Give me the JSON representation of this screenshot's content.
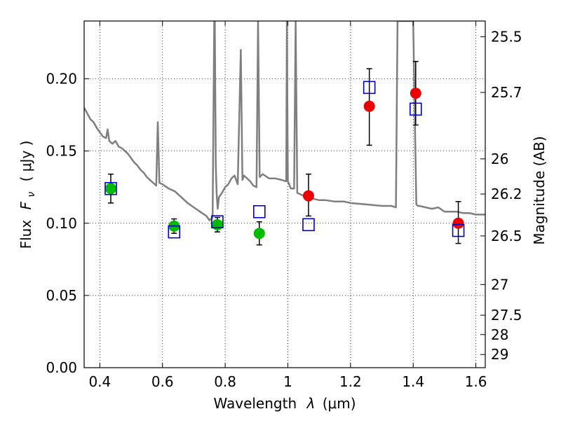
{
  "chart_data": {
    "type": "scatter",
    "xlabel": "Wavelength",
    "xlabel_symbol": "λ",
    "xlabel_unit": "(μm)",
    "ylabel": "Flux",
    "ylabel_symbol": "F",
    "ylabel_subscript": "ν",
    "ylabel_unit": "( μJy )",
    "y2label": "Magnitude (AB)",
    "xlim": [
      0.35,
      1.63
    ],
    "ylim": [
      0.0,
      0.24
    ],
    "grid": true,
    "x_ticks": [
      {
        "value": 0.4,
        "label": "0.4"
      },
      {
        "value": 0.6,
        "label": "0.6"
      },
      {
        "value": 0.8,
        "label": "0.8"
      },
      {
        "value": 1.0,
        "label": "1"
      },
      {
        "value": 1.2,
        "label": "1.2"
      },
      {
        "value": 1.4,
        "label": "1.4"
      },
      {
        "value": 1.6,
        "label": "1.6"
      }
    ],
    "y_ticks": [
      {
        "value": 0.0,
        "label": "0.00"
      },
      {
        "value": 0.05,
        "label": "0.05"
      },
      {
        "value": 0.1,
        "label": "0.10"
      },
      {
        "value": 0.15,
        "label": "0.15"
      },
      {
        "value": 0.2,
        "label": "0.20"
      }
    ],
    "y2_ticks": [
      {
        "mag": 25.5,
        "label": "25.5"
      },
      {
        "mag": 25.7,
        "label": "25.7"
      },
      {
        "mag": 26.0,
        "label": "26"
      },
      {
        "mag": 26.2,
        "label": "26.2"
      },
      {
        "mag": 26.5,
        "label": "26.5"
      },
      {
        "mag": 27.0,
        "label": "27"
      },
      {
        "mag": 27.5,
        "label": "27.5"
      },
      {
        "mag": 28.0,
        "label": "28"
      },
      {
        "mag": 29.0,
        "label": "29"
      }
    ],
    "model_spectrum": {
      "color": "#7f7f7f",
      "x": [
        0.35,
        0.36,
        0.37,
        0.38,
        0.39,
        0.4,
        0.41,
        0.42,
        0.425,
        0.43,
        0.44,
        0.45,
        0.46,
        0.47,
        0.48,
        0.49,
        0.5,
        0.51,
        0.52,
        0.53,
        0.54,
        0.55,
        0.56,
        0.57,
        0.58,
        0.585,
        0.59,
        0.6,
        0.62,
        0.64,
        0.66,
        0.68,
        0.7,
        0.72,
        0.74,
        0.75,
        0.76,
        0.765,
        0.767,
        0.77,
        0.773,
        0.776,
        0.78,
        0.79,
        0.8,
        0.81,
        0.82,
        0.83,
        0.84,
        0.85,
        0.855,
        0.86,
        0.87,
        0.88,
        0.89,
        0.9,
        0.905,
        0.91,
        0.92,
        0.94,
        0.96,
        0.98,
        0.995,
        0.997,
        1.0,
        1.01,
        1.02,
        1.025,
        1.03,
        1.04,
        1.06,
        1.08,
        1.1,
        1.12,
        1.15,
        1.18,
        1.2,
        1.25,
        1.3,
        1.33,
        1.345,
        1.35,
        1.36,
        1.38,
        1.4,
        1.41,
        1.415,
        1.42,
        1.44,
        1.46,
        1.48,
        1.5,
        1.52,
        1.54,
        1.56,
        1.58,
        1.6,
        1.63
      ],
      "y": [
        0.18,
        0.176,
        0.172,
        0.17,
        0.166,
        0.163,
        0.16,
        0.159,
        0.165,
        0.157,
        0.155,
        0.157,
        0.153,
        0.152,
        0.15,
        0.148,
        0.145,
        0.142,
        0.14,
        0.137,
        0.135,
        0.132,
        0.13,
        0.128,
        0.126,
        0.17,
        0.128,
        0.127,
        0.124,
        0.122,
        0.118,
        0.114,
        0.111,
        0.108,
        0.105,
        0.102,
        0.104,
        0.24,
        0.24,
        0.14,
        0.12,
        0.11,
        0.118,
        0.121,
        0.125,
        0.127,
        0.131,
        0.133,
        0.127,
        0.22,
        0.13,
        0.133,
        0.131,
        0.129,
        0.126,
        0.125,
        0.24,
        0.132,
        0.134,
        0.131,
        0.131,
        0.13,
        0.129,
        0.24,
        0.129,
        0.124,
        0.124,
        0.24,
        0.121,
        0.12,
        0.118,
        0.117,
        0.116,
        0.116,
        0.115,
        0.115,
        0.114,
        0.113,
        0.112,
        0.112,
        0.111,
        0.24,
        0.24,
        0.24,
        0.24,
        0.113,
        0.112,
        0.112,
        0.111,
        0.11,
        0.111,
        0.108,
        0.108,
        0.108,
        0.107,
        0.107,
        0.106,
        0.106
      ]
    },
    "series": [
      {
        "marker": "filled-circle",
        "color": "#00bb00",
        "points": [
          {
            "x": 0.435,
            "y": 0.124,
            "yerr_low": 0.114,
            "yerr_high": 0.134
          },
          {
            "x": 0.637,
            "y": 0.098,
            "yerr_low": 0.093,
            "yerr_high": 0.103
          },
          {
            "x": 0.775,
            "y": 0.099,
            "yerr_low": 0.094,
            "yerr_high": 0.104
          },
          {
            "x": 0.909,
            "y": 0.093,
            "yerr_low": 0.085,
            "yerr_high": 0.101
          }
        ]
      },
      {
        "marker": "filled-circle",
        "color": "#ee0000",
        "points": [
          {
            "x": 1.066,
            "y": 0.119,
            "yerr_low": 0.105,
            "yerr_high": 0.134
          },
          {
            "x": 1.26,
            "y": 0.181,
            "yerr_low": 0.154,
            "yerr_high": 0.207
          },
          {
            "x": 1.408,
            "y": 0.19,
            "yerr_low": 0.168,
            "yerr_high": 0.212
          },
          {
            "x": 1.544,
            "y": 0.1,
            "yerr_low": 0.086,
            "yerr_high": 0.115
          }
        ]
      },
      {
        "marker": "open-square",
        "color": "#0000cc",
        "points": [
          {
            "x": 0.435,
            "y": 0.124
          },
          {
            "x": 0.637,
            "y": 0.094
          },
          {
            "x": 0.775,
            "y": 0.101
          },
          {
            "x": 0.909,
            "y": 0.108
          },
          {
            "x": 1.066,
            "y": 0.099
          },
          {
            "x": 1.26,
            "y": 0.194
          },
          {
            "x": 1.408,
            "y": 0.179
          },
          {
            "x": 1.544,
            "y": 0.095
          }
        ]
      }
    ]
  }
}
